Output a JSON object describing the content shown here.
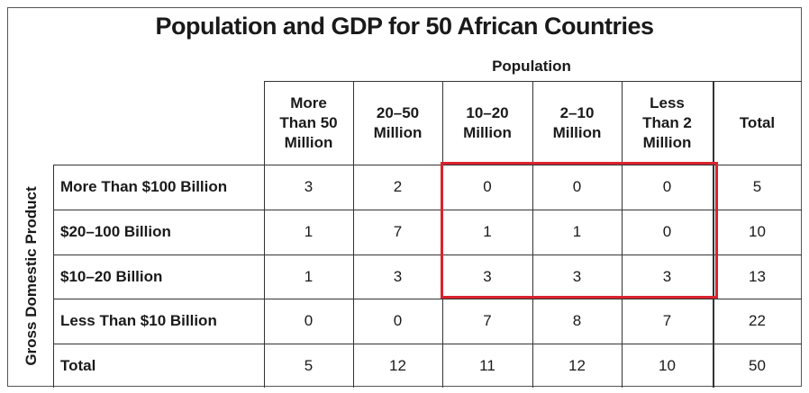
{
  "title": "Population and GDP for 50 African Countries",
  "population_label": "Population",
  "gdp_label": "Gross Domestic Product",
  "highlight_color": "#d9232e",
  "columns": [
    [
      "More",
      "Than 50",
      "Million"
    ],
    [
      "20–50",
      "Million"
    ],
    [
      "10–20",
      "Million"
    ],
    [
      "2–10",
      "Million"
    ],
    [
      "Less",
      "Than 2",
      "Million"
    ],
    [
      "Total"
    ]
  ],
  "rows": [
    {
      "label": "More Than $100 Billion",
      "values": [
        "3",
        "2",
        "0",
        "0",
        "0",
        "5"
      ]
    },
    {
      "label": "$20–100 Billion",
      "values": [
        "1",
        "7",
        "1",
        "1",
        "0",
        "10"
      ]
    },
    {
      "label": "$10–20 Billion",
      "values": [
        "1",
        "3",
        "3",
        "3",
        "3",
        "13"
      ]
    },
    {
      "label": "Less Than $10 Billion",
      "values": [
        "0",
        "0",
        "7",
        "8",
        "7",
        "22"
      ]
    },
    {
      "label": "Total",
      "values": [
        "5",
        "12",
        "11",
        "12",
        "10",
        "50"
      ]
    }
  ]
}
